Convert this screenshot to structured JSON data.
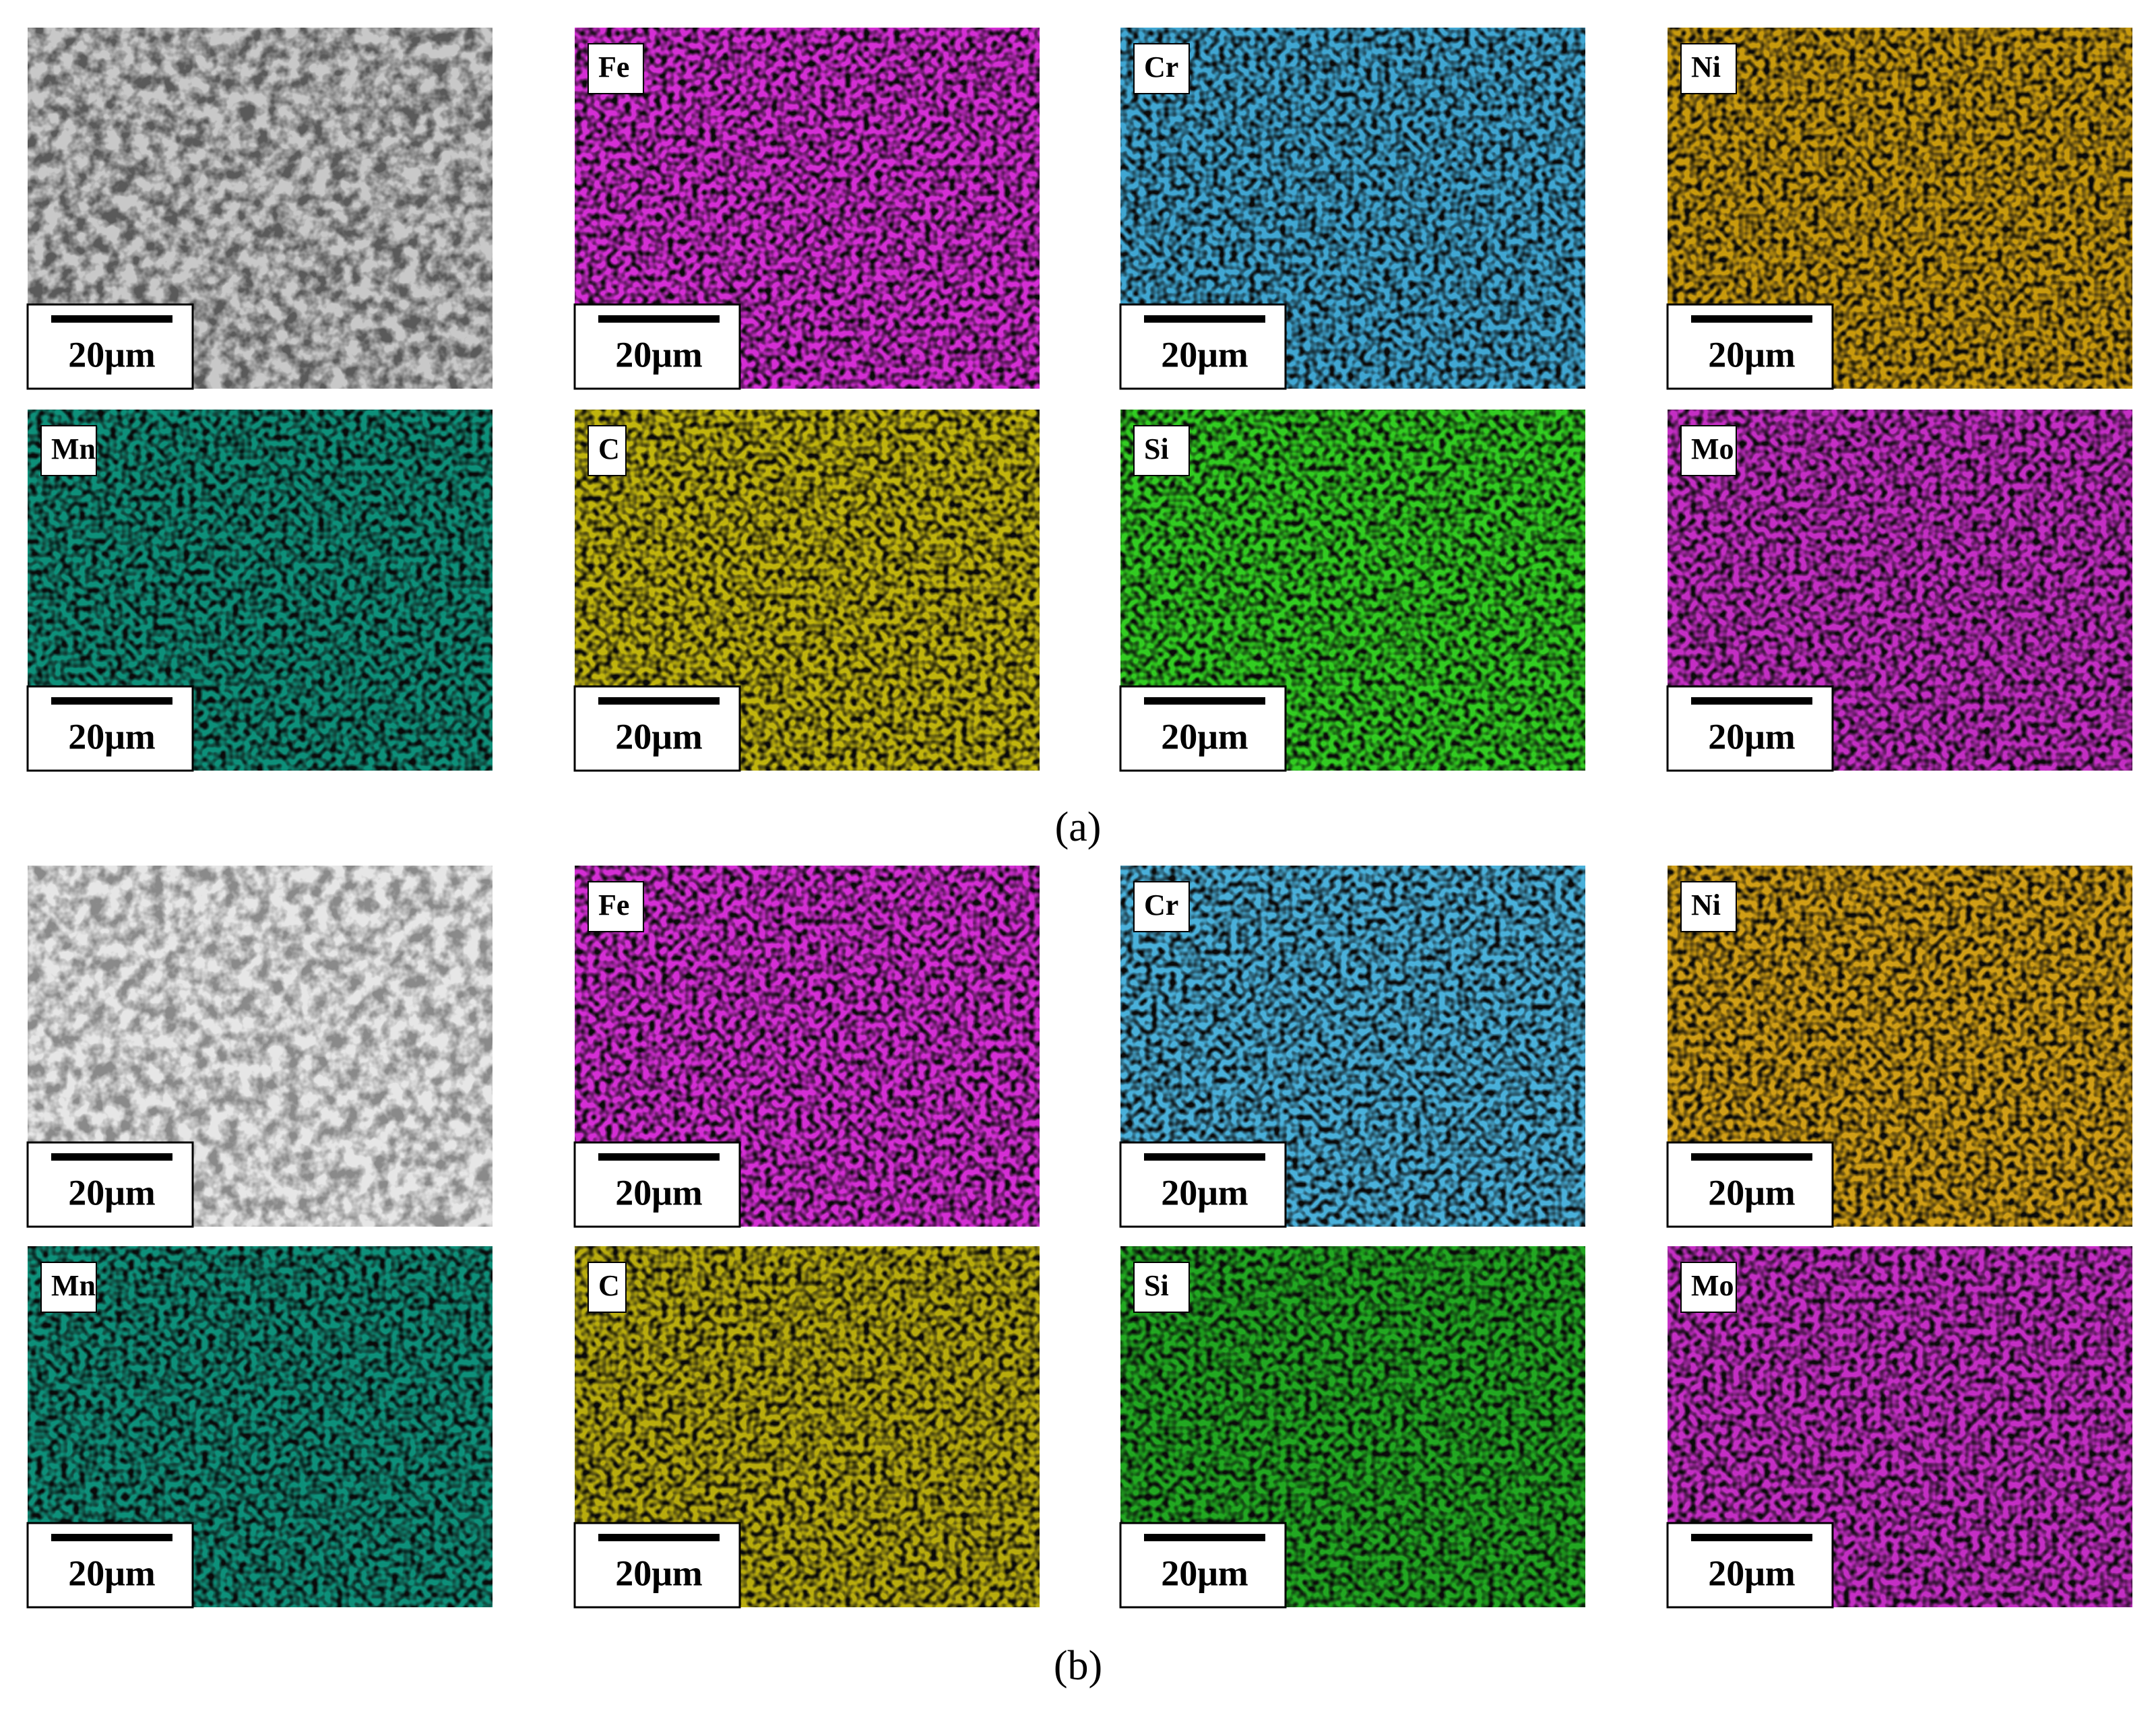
{
  "groups": [
    {
      "caption": "(a)",
      "panels": [
        {
          "scale_bar": "20μm",
          "color": "#c8c8c8"
        },
        {
          "label": "Fe",
          "scale_bar": "20μm",
          "color": "#d42ed4"
        },
        {
          "label": "Cr",
          "scale_bar": "20μm",
          "color": "#3fa6d2"
        },
        {
          "label": "Ni",
          "scale_bar": "20μm",
          "color": "#c89a10"
        },
        {
          "label": "Mn",
          "scale_bar": "20μm",
          "color": "#10907a"
        },
        {
          "label": "C",
          "scale_bar": "20μm",
          "color": "#c0b410"
        },
        {
          "label": "Si",
          "scale_bar": "20μm",
          "color": "#30cc20"
        },
        {
          "label": "Mo",
          "scale_bar": "20μm",
          "color": "#c42ec4"
        }
      ]
    },
    {
      "caption": "(b)",
      "panels": [
        {
          "scale_bar": "20μm",
          "color": "#e6e6e6"
        },
        {
          "label": "Fe",
          "scale_bar": "20μm",
          "color": "#d42ed4"
        },
        {
          "label": "Cr",
          "scale_bar": "20μm",
          "color": "#4ab0da"
        },
        {
          "label": "Ni",
          "scale_bar": "20μm",
          "color": "#d09e14"
        },
        {
          "label": "Mn",
          "scale_bar": "20μm",
          "color": "#10907a"
        },
        {
          "label": "C",
          "scale_bar": "20μm",
          "color": "#b8ac10"
        },
        {
          "label": "Si",
          "scale_bar": "20μm",
          "color": "#20a820"
        },
        {
          "label": "Mo",
          "scale_bar": "20μm",
          "color": "#c42ec4"
        }
      ]
    }
  ]
}
